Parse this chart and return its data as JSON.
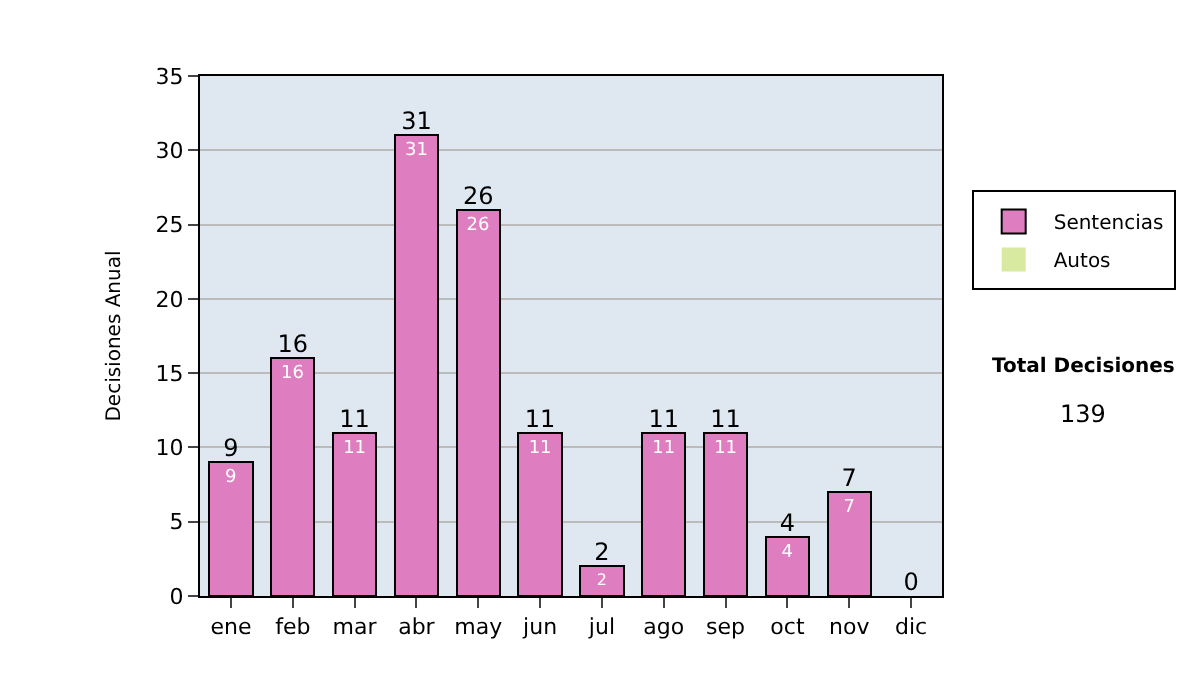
{
  "chart_data": {
    "type": "bar",
    "stacked": true,
    "ylabel": "Decisiones Anual",
    "categories": [
      "ene",
      "feb",
      "mar",
      "abr",
      "may",
      "jun",
      "jul",
      "ago",
      "sep",
      "oct",
      "nov",
      "dic"
    ],
    "series": [
      {
        "name": "Sentencias",
        "color": "#de7ec0",
        "values": [
          9,
          16,
          11,
          31,
          26,
          11,
          2,
          11,
          11,
          4,
          7,
          0
        ],
        "value_labels": [
          "9",
          "16",
          "11",
          "31",
          "26",
          "11",
          "2",
          "11",
          "11",
          "4",
          "7",
          null
        ]
      },
      {
        "name": "Autos",
        "color": "#d8eaa0",
        "values": [
          0,
          0,
          0,
          0,
          0,
          0,
          0,
          0,
          0,
          0,
          0,
          0
        ]
      }
    ],
    "totals": [
      "9",
      "16",
      "11",
      "31",
      "26",
      "11",
      "2",
      "11",
      "11",
      "4",
      "7",
      "0"
    ],
    "ylim": [
      0,
      35
    ],
    "yticks": [
      0,
      5,
      10,
      15,
      20,
      25,
      30,
      35
    ],
    "grid": "y",
    "legend": "right",
    "annotations": [
      "Total Decisiones",
      "139"
    ]
  }
}
